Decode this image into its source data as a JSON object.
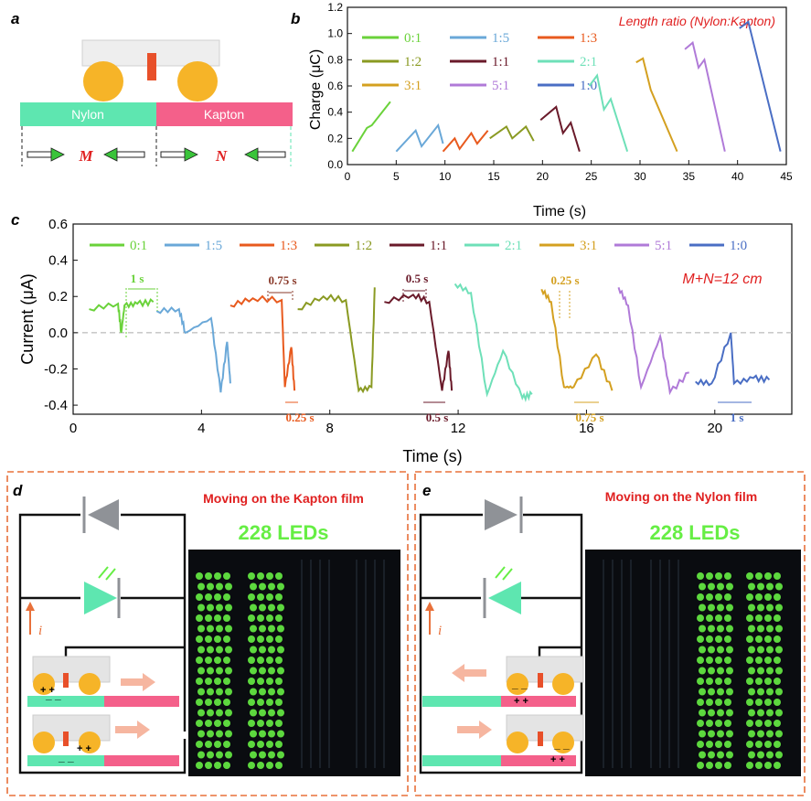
{
  "panel_labels": {
    "a": "a",
    "b": "b",
    "c": "c",
    "d": "d",
    "e": "e"
  },
  "panel_a": {
    "nylon": "Nylon",
    "kapton": "Kapton",
    "m": "M",
    "n": "N"
  },
  "colors": {
    "0:1": "#6ad23a",
    "1:5": "#6aa8d8",
    "1:3": "#e85a1e",
    "1:2": "#8a9a22",
    "1:1": "#6a1a2a",
    "2:1": "#6ee0b8",
    "3:1": "#d4a020",
    "5:1": "#b07ad8",
    "1:0": "#4a6ec4",
    "nylon": "#5ee6b0",
    "kapton": "#f4608a",
    "roller": "#f6b428",
    "annotation_red": "#e02020",
    "led": "#66ee44",
    "dashed_border": "#e8703a"
  },
  "legend": [
    "0:1",
    "1:5",
    "1:3",
    "1:2",
    "1:1",
    "2:1",
    "3:1",
    "5:1",
    "1:0"
  ],
  "chart_b": {
    "type": "line",
    "title": "Length ratio (Nylon:Kapton)",
    "xlabel": "Time (s)",
    "ylabel": "Charge (μC)",
    "xlim": [
      0,
      45
    ],
    "ylim": [
      0,
      1.2
    ],
    "xticks": [
      "0",
      "5",
      "10",
      "15",
      "20",
      "25",
      "30",
      "35",
      "40",
      "45"
    ],
    "yticks": [
      "0.0",
      "0.2",
      "0.4",
      "0.6",
      "0.8",
      "1.0",
      "1.2"
    ]
  },
  "chart_c": {
    "type": "line",
    "xlabel": "Time (s)",
    "ylabel": "Current (μA)",
    "xlim": [
      0,
      22.4
    ],
    "ylim": [
      -0.45,
      0.6
    ],
    "xticks": [
      "0",
      "4",
      "8",
      "12",
      "16",
      "20"
    ],
    "yticks": [
      "-0.4",
      "-0.2",
      "0.0",
      "0.2",
      "0.4",
      "0.6"
    ],
    "condition": "M+N=12 cm",
    "annotations": {
      "a1": "1 s",
      "a2": "0.75 s",
      "a3": "0.25 s",
      "a4": "0.5 s",
      "a5": "0.5 s",
      "a6": "0.25 s",
      "a7": "0.75 s",
      "a8": "1 s"
    }
  },
  "chart_data": [
    {
      "type": "line",
      "title": "Length ratio (Nylon:Kapton)",
      "xlabel": "Time (s)",
      "ylabel": "Charge (μC)",
      "xlim": [
        0,
        45
      ],
      "ylim": [
        0,
        1.2
      ],
      "series": [
        {
          "name": "0:1",
          "x": [
            0.5,
            2.0,
            2.5,
            4.4
          ],
          "y": [
            0.1,
            0.28,
            0.3,
            0.48
          ]
        },
        {
          "name": "1:5",
          "x": [
            5.0,
            7.0,
            7.6,
            9.3,
            9.8
          ],
          "y": [
            0.1,
            0.26,
            0.14,
            0.3,
            0.16
          ]
        },
        {
          "name": "1:3",
          "x": [
            9.8,
            11.0,
            11.5,
            12.7,
            13.3,
            14.4
          ],
          "y": [
            0.1,
            0.2,
            0.12,
            0.24,
            0.16,
            0.26
          ]
        },
        {
          "name": "1:2",
          "x": [
            14.6,
            16.3,
            16.9,
            18.3,
            19.1
          ],
          "y": [
            0.2,
            0.29,
            0.2,
            0.29,
            0.18
          ]
        },
        {
          "name": "1:1",
          "x": [
            19.8,
            21.4,
            22.1,
            22.9,
            23.8
          ],
          "y": [
            0.34,
            0.44,
            0.24,
            0.32,
            0.1
          ]
        },
        {
          "name": "2:1",
          "x": [
            24.8,
            25.6,
            26.3,
            27.0,
            28.7
          ],
          "y": [
            0.6,
            0.68,
            0.42,
            0.5,
            0.1
          ]
        },
        {
          "name": "3:1",
          "x": [
            29.6,
            30.3,
            31.1,
            33.8
          ],
          "y": [
            0.78,
            0.81,
            0.57,
            0.1
          ]
        },
        {
          "name": "5:1",
          "x": [
            34.6,
            35.4,
            36.0,
            36.6,
            38.7
          ],
          "y": [
            0.88,
            0.93,
            0.74,
            0.8,
            0.1
          ]
        },
        {
          "name": "1:0",
          "x": [
            40.2,
            41.1,
            44.4
          ],
          "y": [
            1.04,
            1.09,
            0.1
          ]
        }
      ]
    },
    {
      "type": "line",
      "xlabel": "Time (s)",
      "ylabel": "Current (μA)",
      "xlim": [
        0,
        22.4
      ],
      "ylim": [
        -0.45,
        0.6
      ],
      "series": [
        {
          "name": "0:1",
          "x": [
            0.5,
            1.4,
            1.5,
            1.6,
            2.0,
            2.5
          ],
          "y": [
            0.13,
            0.16,
            0.0,
            0.15,
            0.16,
            0.17
          ]
        },
        {
          "name": "1:5",
          "x": [
            2.6,
            3.3,
            3.5,
            4.3,
            4.6,
            4.8,
            4.9
          ],
          "y": [
            0.12,
            0.13,
            0.0,
            0.08,
            -0.33,
            -0.05,
            -0.28
          ]
        },
        {
          "name": "1:3",
          "x": [
            4.9,
            5.6,
            6.5,
            6.6,
            6.8,
            6.9
          ],
          "y": [
            0.15,
            0.19,
            0.18,
            -0.3,
            -0.08,
            -0.32
          ]
        },
        {
          "name": "1:2",
          "x": [
            7.0,
            7.8,
            8.5,
            8.9,
            9.3,
            9.4
          ],
          "y": [
            0.13,
            0.2,
            0.18,
            -0.32,
            -0.3,
            0.25
          ]
        },
        {
          "name": "1:1",
          "x": [
            9.7,
            10.6,
            11.1,
            11.5,
            11.7,
            11.8
          ],
          "y": [
            0.17,
            0.21,
            0.17,
            -0.32,
            -0.1,
            -0.32
          ]
        },
        {
          "name": "2:1",
          "x": [
            11.9,
            12.4,
            12.9,
            13.4,
            14.0,
            14.3
          ],
          "y": [
            0.27,
            0.22,
            -0.34,
            -0.1,
            -0.36,
            -0.34
          ]
        },
        {
          "name": "3:1",
          "x": [
            14.6,
            14.9,
            15.3,
            15.6,
            16.3,
            16.8
          ],
          "y": [
            0.24,
            0.17,
            -0.3,
            -0.3,
            -0.12,
            -0.32
          ]
        },
        {
          "name": "5:1",
          "x": [
            17.0,
            17.3,
            17.7,
            18.3,
            18.6,
            19.2
          ],
          "y": [
            0.25,
            0.15,
            -0.3,
            -0.02,
            -0.33,
            -0.22
          ]
        },
        {
          "name": "1:0",
          "x": [
            19.4,
            19.9,
            20.5,
            20.6,
            21.2,
            21.7
          ],
          "y": [
            -0.27,
            -0.28,
            0.0,
            -0.28,
            -0.25,
            -0.26
          ]
        }
      ]
    }
  ],
  "panel_d": {
    "title": "Moving on the Kapton film",
    "leds": "228 LEDs",
    "current": "i"
  },
  "panel_e": {
    "title": "Moving on the Nylon film",
    "leds": "228 LEDs",
    "current": "i"
  }
}
